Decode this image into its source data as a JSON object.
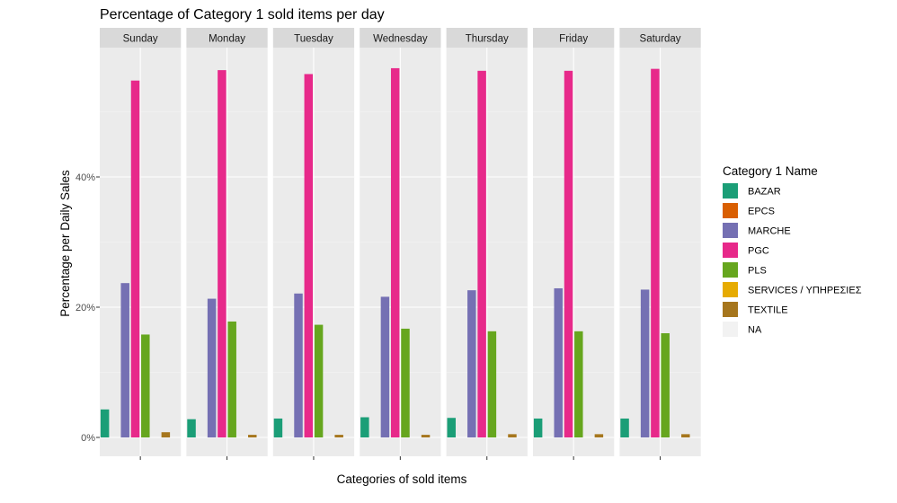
{
  "chart_data": {
    "type": "bar",
    "title": "Percentage of Category 1 sold items per day",
    "xlabel": "Categories of sold items",
    "ylabel": "Percentage per Daily Sales",
    "ylim": [
      0,
      0.6
    ],
    "y_ticks": [
      {
        "value": 0,
        "label": "0%"
      },
      {
        "value": 0.2,
        "label": "20%"
      },
      {
        "value": 0.4,
        "label": "40%"
      }
    ],
    "grid": true,
    "legend_position": "right",
    "legend_title": "Category 1 Name",
    "categories": [
      "BAZAR",
      "EPCS",
      "MARCHE",
      "PGC",
      "PLS",
      "SERVICES / ΥΠΗΡΕΣΙΕΣ",
      "TEXTILE",
      "NA"
    ],
    "colors": {
      "BAZAR": "#1b9e77",
      "EPCS": "#d95f02",
      "MARCHE": "#7570b3",
      "PGC": "#e7298a",
      "PLS": "#66a61e",
      "SERVICES / ΥΠΗΡΕΣΙΕΣ": "#e6ab02",
      "TEXTILE": "#a6761d",
      "NA": "#f2f2f2"
    },
    "panels": [
      {
        "facet": "Sunday",
        "values": [
          0.043,
          0.0,
          0.237,
          0.548,
          0.158,
          0.0,
          0.008,
          0.0
        ]
      },
      {
        "facet": "Monday",
        "values": [
          0.028,
          0.0,
          0.213,
          0.564,
          0.178,
          0.0,
          0.004,
          0.0
        ]
      },
      {
        "facet": "Tuesday",
        "values": [
          0.029,
          0.0,
          0.221,
          0.558,
          0.173,
          0.0,
          0.004,
          0.0
        ]
      },
      {
        "facet": "Wednesday",
        "values": [
          0.031,
          0.0,
          0.216,
          0.567,
          0.167,
          0.0,
          0.004,
          0.0
        ]
      },
      {
        "facet": "Thursday",
        "values": [
          0.03,
          0.0,
          0.226,
          0.563,
          0.163,
          0.0,
          0.005,
          0.0
        ]
      },
      {
        "facet": "Friday",
        "values": [
          0.029,
          0.0,
          0.229,
          0.563,
          0.163,
          0.0,
          0.005,
          0.0
        ]
      },
      {
        "facet": "Saturday",
        "values": [
          0.029,
          0.0,
          0.227,
          0.566,
          0.16,
          0.0,
          0.005,
          0.0
        ]
      }
    ]
  }
}
